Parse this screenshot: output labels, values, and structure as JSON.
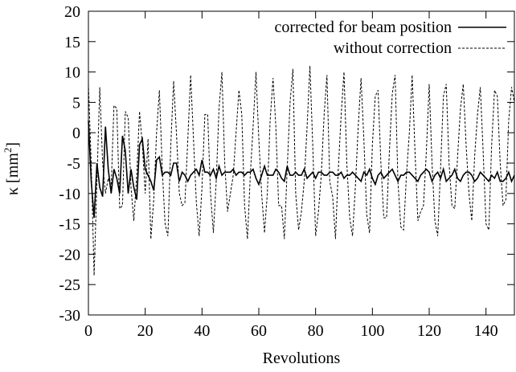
{
  "chart_data": {
    "type": "line",
    "title": "",
    "xlabel": "Revolutions",
    "ylabel_main": "κ [mm",
    "ylabel_sup": "2",
    "ylabel_close": "]",
    "xlim": [
      0,
      150
    ],
    "ylim": [
      -30,
      20
    ],
    "xticks": [
      0,
      20,
      40,
      60,
      80,
      100,
      120,
      140
    ],
    "yticks": [
      -30,
      -25,
      -20,
      -15,
      -10,
      -5,
      0,
      5,
      10,
      15,
      20
    ],
    "grid": false,
    "legend_position": "top-right",
    "series": [
      {
        "name": "corrected for beam position",
        "style": "solid",
        "x": [
          0,
          1,
          2,
          3,
          4,
          5,
          6,
          7,
          8,
          9,
          10,
          11,
          12,
          13,
          14,
          15,
          16,
          17,
          18,
          19,
          20,
          21,
          22,
          23,
          24,
          25,
          26,
          27,
          28,
          29,
          30,
          31,
          32,
          33,
          34,
          35,
          36,
          37,
          38,
          39,
          40,
          41,
          42,
          43,
          44,
          45,
          46,
          47,
          48,
          49,
          50,
          51,
          52,
          53,
          54,
          55,
          56,
          57,
          58,
          59,
          60,
          61,
          62,
          63,
          64,
          65,
          66,
          67,
          68,
          69,
          70,
          71,
          72,
          73,
          74,
          75,
          76,
          77,
          78,
          79,
          80,
          81,
          82,
          83,
          84,
          85,
          86,
          87,
          88,
          89,
          90,
          91,
          92,
          93,
          94,
          95,
          96,
          97,
          98,
          99,
          100,
          101,
          102,
          103,
          104,
          105,
          106,
          107,
          108,
          109,
          110,
          111,
          112,
          113,
          114,
          115,
          116,
          117,
          118,
          119,
          120,
          121,
          122,
          123,
          124,
          125,
          126,
          127,
          128,
          129,
          130,
          131,
          132,
          133,
          134,
          135,
          136,
          137,
          138,
          139,
          140,
          141,
          142,
          143,
          144,
          145,
          146,
          147,
          148,
          149,
          150
        ],
        "y": [
          2,
          -8,
          -14,
          -5,
          -9,
          -10.5,
          1,
          -6,
          -10,
          -6,
          -7.5,
          -10,
          -0.5,
          -3,
          -10,
          -6,
          -9,
          -11,
          -2,
          -1,
          -6,
          -7,
          -8,
          -9.5,
          -4.5,
          -4,
          -7,
          -6.5,
          -6.5,
          -7,
          -5,
          -5,
          -8,
          -6.5,
          -7,
          -8,
          -7,
          -6.5,
          -6,
          -7,
          -4.5,
          -6.5,
          -6.5,
          -7,
          -6,
          -7.5,
          -5.5,
          -7,
          -6.5,
          -6.5,
          -6.5,
          -6,
          -7,
          -6.5,
          -6.5,
          -7,
          -6.5,
          -6.5,
          -6,
          -7.5,
          -8.5,
          -7,
          -5.5,
          -7,
          -7,
          -7,
          -6,
          -6.5,
          -7.5,
          -8,
          -5.5,
          -7,
          -7,
          -6.5,
          -7,
          -7,
          -6,
          -7.5,
          -7,
          -6.5,
          -7.5,
          -6.5,
          -6.5,
          -7,
          -7,
          -6.5,
          -6.5,
          -7,
          -7,
          -6.5,
          -7.5,
          -7,
          -7,
          -6.5,
          -7,
          -7.5,
          -8,
          -6.5,
          -7,
          -6,
          -7.5,
          -8.5,
          -7,
          -6.5,
          -7.5,
          -7,
          -6.5,
          -6,
          -7,
          -8,
          -7,
          -7,
          -6.5,
          -6.5,
          -7,
          -7.5,
          -8,
          -7,
          -6.5,
          -6,
          -6.5,
          -8,
          -7,
          -6.5,
          -7.5,
          -6,
          -8,
          -7.5,
          -7,
          -6,
          -7.5,
          -8,
          -7,
          -6.5,
          -6.5,
          -7,
          -8,
          -7.5,
          -6.5,
          -7,
          -7.5,
          -8,
          -7,
          -7.5,
          -6.5,
          -8,
          -8,
          -7.5,
          -6.5,
          -8,
          -7
        ]
      },
      {
        "name": "without correction",
        "style": "dashed",
        "x": [
          0,
          1,
          2,
          3,
          4,
          5,
          6,
          7,
          8,
          9,
          10,
          11,
          12,
          13,
          14,
          15,
          16,
          17,
          18,
          19,
          20,
          21,
          22,
          23,
          24,
          25,
          26,
          27,
          28,
          29,
          30,
          31,
          32,
          33,
          34,
          35,
          36,
          37,
          38,
          39,
          40,
          41,
          42,
          43,
          44,
          45,
          46,
          47,
          48,
          49,
          50,
          51,
          52,
          53,
          54,
          55,
          56,
          57,
          58,
          59,
          60,
          61,
          62,
          63,
          64,
          65,
          66,
          67,
          68,
          69,
          70,
          71,
          72,
          73,
          74,
          75,
          76,
          77,
          78,
          79,
          80,
          81,
          82,
          83,
          84,
          85,
          86,
          87,
          88,
          89,
          90,
          91,
          92,
          93,
          94,
          95,
          96,
          97,
          98,
          99,
          100,
          101,
          102,
          103,
          104,
          105,
          106,
          107,
          108,
          109,
          110,
          111,
          112,
          113,
          114,
          115,
          116,
          117,
          118,
          119,
          120,
          121,
          122,
          123,
          124,
          125,
          126,
          127,
          128,
          129,
          130,
          131,
          132,
          133,
          134,
          135,
          136,
          137,
          138,
          139,
          140,
          141,
          142,
          143,
          144,
          145,
          146,
          147,
          148,
          149,
          150
        ],
        "y": [
          8,
          -5,
          -23.5,
          -8,
          7.5,
          -5,
          -10,
          -7.5,
          -9,
          4.5,
          4,
          -12.5,
          -12,
          3.5,
          2.5,
          -9,
          -14.5,
          -7,
          3.5,
          -2,
          -10,
          -1,
          -17.5,
          -11,
          0,
          7,
          -6,
          -15,
          -17,
          -2,
          8.5,
          0,
          -10,
          -12,
          -11.5,
          -1,
          9.5,
          -1,
          -11.5,
          -17,
          -9,
          3,
          3,
          -10,
          -16.5,
          -8,
          4,
          10,
          -5,
          -13,
          -10,
          -7,
          0,
          7,
          3,
          -12,
          -17.5,
          -7,
          1,
          10,
          -1,
          -10,
          -16.5,
          -10,
          2,
          9,
          1,
          -12,
          -12,
          -17.5,
          -6,
          5,
          10.5,
          -10,
          -16,
          -13,
          -8,
          1,
          11,
          -2,
          -17,
          -13,
          -7,
          3,
          9.5,
          -8,
          -10.5,
          -17.5,
          -6,
          3,
          10,
          -5,
          -14,
          -17,
          -9,
          1,
          9,
          -1,
          -13.5,
          -16.5,
          -2,
          6,
          7,
          -5,
          -14,
          -14,
          -3,
          6.5,
          9.5,
          -8,
          -15.5,
          -16,
          -7,
          0,
          9.5,
          -3,
          -14.5,
          -13,
          -12,
          -3,
          8,
          -5,
          -14.5,
          -17,
          -6,
          6,
          8,
          -5,
          -12,
          -12.5,
          -4,
          4,
          8,
          -2,
          -10,
          -14.5,
          -4,
          3,
          7.5,
          -3,
          -15,
          -16,
          -2,
          7,
          6,
          -5,
          -12,
          -11,
          2,
          7.5,
          5
        ]
      }
    ]
  }
}
